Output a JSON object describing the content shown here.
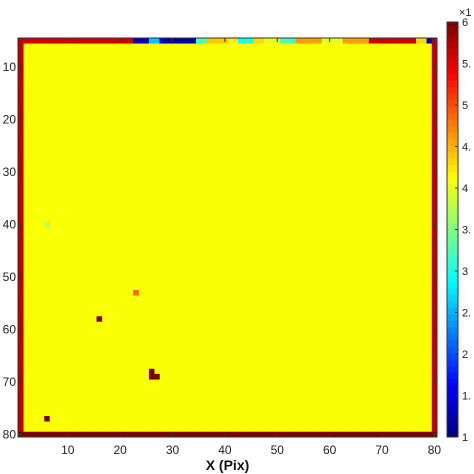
{
  "chart_data": {
    "type": "heatmap",
    "title": "",
    "xlabel": "X (Pix)",
    "ylabel": "",
    "xlim": [
      0.5,
      80.5
    ],
    "ylim": [
      4.5,
      80.5
    ],
    "x_ticks": [
      10,
      20,
      30,
      40,
      50,
      60,
      70,
      80
    ],
    "y_ticks": [
      10,
      20,
      30,
      40,
      50,
      60,
      70,
      80
    ],
    "y_reversed": true,
    "grid": false,
    "colormap": "jet",
    "background_value": 4.1,
    "colorbar": {
      "range": [
        1,
        6
      ],
      "ticks": [
        1,
        1.5,
        2,
        2.5,
        3,
        3.5,
        4,
        4.5,
        5,
        5.5,
        6
      ],
      "tick_labels": [
        "1",
        "1.",
        "2",
        "2.",
        "3",
        "3.",
        "4",
        "4.",
        "5",
        "5.",
        "6"
      ],
      "exponent_label": "×1"
    },
    "border_rows": [
      {
        "row": 80,
        "value": 6.0
      }
    ],
    "border_columns": [
      {
        "column": 1,
        "value": 5.7
      },
      {
        "column": 80,
        "value": 5.7
      }
    ],
    "top_row": {
      "row": 5,
      "default_value": 5.6,
      "segments": [
        {
          "from": 23,
          "to": 25,
          "value": 1.3
        },
        {
          "from": 26,
          "to": 27,
          "value": 2.6
        },
        {
          "from": 28,
          "to": 28,
          "value": 1.5
        },
        {
          "from": 29,
          "to": 34,
          "value": 1.2
        },
        {
          "from": 35,
          "to": 36,
          "value": 3.2
        },
        {
          "from": 37,
          "to": 40,
          "value": 4.4
        },
        {
          "from": 41,
          "to": 42,
          "value": 4.2
        },
        {
          "from": 43,
          "to": 45,
          "value": 3.0
        },
        {
          "from": 46,
          "to": 47,
          "value": 4.3
        },
        {
          "from": 48,
          "to": 50,
          "value": 4.0
        },
        {
          "from": 51,
          "to": 53,
          "value": 3.2
        },
        {
          "from": 54,
          "to": 58,
          "value": 4.6
        },
        {
          "from": 59,
          "to": 62,
          "value": 4.0
        },
        {
          "from": 63,
          "to": 67,
          "value": 4.6
        },
        {
          "from": 77,
          "to": 78,
          "value": 4.3
        },
        {
          "from": 79,
          "to": 79,
          "value": 1.3
        }
      ]
    },
    "cells": [
      {
        "x": 16,
        "y": 58,
        "value": 6.0
      },
      {
        "x": 26,
        "y": 68,
        "value": 6.0
      },
      {
        "x": 26,
        "y": 69,
        "value": 6.0
      },
      {
        "x": 27,
        "y": 69,
        "value": 6.0
      },
      {
        "x": 6,
        "y": 77,
        "value": 6.0
      },
      {
        "x": 23,
        "y": 53,
        "value": 4.9
      },
      {
        "x": 6,
        "y": 40,
        "value": 3.8
      }
    ]
  }
}
